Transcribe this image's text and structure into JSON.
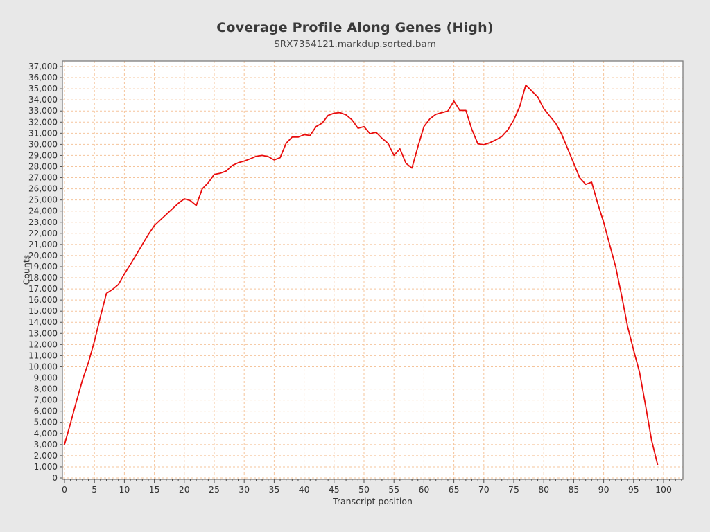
{
  "page": {
    "background": "#e8e8e8"
  },
  "chart_data": {
    "type": "line",
    "title": "Coverage Profile Along Genes (High)",
    "subtitle": "SRX7354121.markdup.sorted.bam",
    "xlabel": "Transcript position",
    "ylabel": "Counts",
    "xlim": [
      0,
      103
    ],
    "ylim": [
      0,
      37300
    ],
    "y_max": 37000,
    "y_tick_step": 1000,
    "x_minor_tick_step": 1,
    "legend": "none",
    "plot_background": "#ffffff",
    "frame_color": "#7d7d7d",
    "tick_color": "#4f4f4f",
    "text_color": "#333333",
    "grid": {
      "style": "dashed",
      "color": "#f5c49b",
      "vertical_every": 5,
      "horizontal_every": 1000
    },
    "x_ticks": [
      0,
      5,
      10,
      15,
      20,
      25,
      30,
      35,
      40,
      45,
      50,
      55,
      60,
      65,
      70,
      75,
      80,
      85,
      90,
      95,
      100
    ],
    "x_tick_labels": [
      "0",
      "5",
      "10",
      "15",
      "20",
      "25",
      "30",
      "35",
      "40",
      "45",
      "50",
      "55",
      "60",
      "65",
      "70",
      "75",
      "80",
      "85",
      "90",
      "95",
      "100"
    ],
    "y_tick_labels": [
      "0",
      "1,000",
      "2,000",
      "3,000",
      "4,000",
      "5,000",
      "6,000",
      "7,000",
      "8,000",
      "9,000",
      "10,000",
      "11,000",
      "12,000",
      "13,000",
      "14,000",
      "15,000",
      "16,000",
      "17,000",
      "18,000",
      "19,000",
      "20,000",
      "21,000",
      "22,000",
      "23,000",
      "24,000",
      "25,000",
      "26,000",
      "27,000",
      "28,000",
      "29,000",
      "30,000",
      "31,000",
      "32,000",
      "33,000",
      "34,000",
      "35,000",
      "36,000",
      "37,000"
    ],
    "series": [
      {
        "name": "SRX7354121.markdup.sorted.bam",
        "color": "#e90c0c",
        "x": [
          0,
          1,
          2,
          3,
          4,
          5,
          6,
          7,
          8,
          9,
          10,
          11,
          12,
          13,
          14,
          15,
          16,
          17,
          18,
          19,
          20,
          21,
          22,
          23,
          24,
          25,
          26,
          27,
          28,
          29,
          30,
          31,
          32,
          33,
          34,
          35,
          36,
          37,
          38,
          39,
          40,
          41,
          42,
          43,
          44,
          45,
          46,
          47,
          48,
          49,
          50,
          51,
          52,
          53,
          54,
          55,
          56,
          57,
          58,
          59,
          60,
          61,
          62,
          63,
          64,
          65,
          66,
          67,
          68,
          69,
          70,
          71,
          72,
          73,
          74,
          75,
          76,
          77,
          78,
          79,
          80,
          81,
          82,
          83,
          84,
          85,
          86,
          87,
          88,
          89,
          90,
          91,
          92,
          93,
          94,
          95,
          96,
          97,
          98,
          99
        ],
        "values": [
          3000,
          4900,
          6900,
          8800,
          10400,
          12300,
          14500,
          16600,
          16950,
          17400,
          18350,
          19200,
          20100,
          21000,
          21900,
          22700,
          23200,
          23700,
          24200,
          24700,
          25100,
          24950,
          24500,
          26000,
          26550,
          27300,
          27400,
          27600,
          28100,
          28350,
          28500,
          28700,
          28930,
          29000,
          28900,
          28600,
          28800,
          30100,
          30650,
          30650,
          30870,
          30800,
          31600,
          31900,
          32600,
          32800,
          32850,
          32650,
          32200,
          31450,
          31600,
          30950,
          31100,
          30550,
          30100,
          29000,
          29600,
          28300,
          27870,
          29800,
          31600,
          32300,
          32700,
          32850,
          33000,
          33900,
          33050,
          33050,
          31350,
          30050,
          29970,
          30150,
          30400,
          30700,
          31300,
          32200,
          33400,
          35340,
          34800,
          34260,
          33220,
          32550,
          31900,
          30900,
          29600,
          28300,
          27000,
          26400,
          26600,
          24700,
          23000,
          21000,
          19000,
          16400,
          13600,
          11500,
          9500,
          6500,
          3400,
          1200
        ]
      }
    ]
  }
}
